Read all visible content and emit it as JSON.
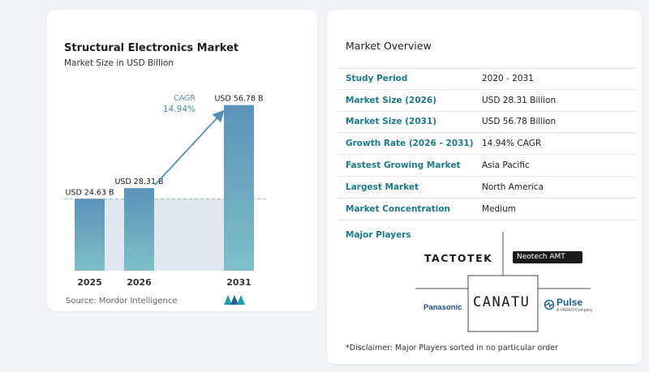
{
  "chart": {
    "title": "Structural Electronics Market",
    "subtitle": "Market Size in USD Billion",
    "cagr_label": "CAGR",
    "cagr_value": "14.94%",
    "source": "Source:  Mordor Intelligence"
  },
  "chart_data": {
    "type": "bar",
    "categories": [
      "2025",
      "2026",
      "2031"
    ],
    "values": [
      24.63,
      28.31,
      56.78
    ],
    "data_labels": [
      "USD 24.63 B",
      "USD 28.31 B",
      "USD 56.78 B"
    ],
    "title": "Structural Electronics Market",
    "subtitle": "Market Size in USD Billion",
    "xlabel": "",
    "ylabel": "",
    "ylim": [
      0,
      60
    ],
    "grid": false,
    "colors": {
      "bar_top": "#5a93b8",
      "bar_bottom": "#7fbfc9",
      "arrow": "#4f8fb8",
      "baseline": "#9fb4c4",
      "shade": "#dfe7f0"
    },
    "annotation": {
      "text": "CAGR 14.94%",
      "from": "2026",
      "to": "2031"
    }
  },
  "overview": {
    "title": "Market Overview",
    "rows": [
      {
        "label": "Study Period",
        "value": "2020 - 2031"
      },
      {
        "label": "Market Size (2026)",
        "value": "USD 28.31 Billion"
      },
      {
        "label": "Market Size (2031)",
        "value": "USD 56.78 Billion"
      },
      {
        "label": "Growth Rate (2026 - 2031)",
        "value": "14.94% CAGR"
      },
      {
        "label": "Fastest Growing Market",
        "value": "Asia Pacific"
      },
      {
        "label": "Largest Market",
        "value": "North America"
      },
      {
        "label": "Market Concentration",
        "value": "Medium"
      }
    ]
  },
  "players": {
    "label": "Major Players",
    "logos": [
      "TACTOTEK",
      "Neotech AMT",
      "CANATU",
      "Panasonic",
      "Pulse"
    ],
    "pulse_sub": "A YAGEO Company"
  },
  "disclaimer": "*Disclaimer: Major Players sorted in no particular order"
}
